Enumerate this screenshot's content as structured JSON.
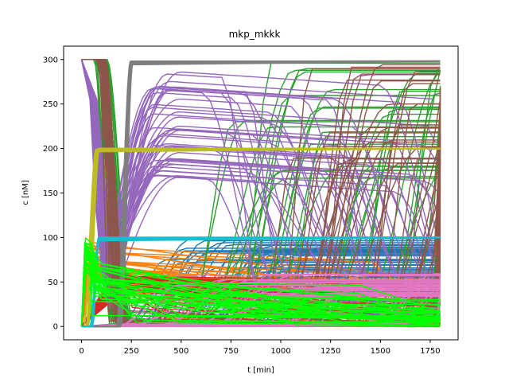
{
  "chart_data": {
    "type": "line",
    "title": "mkp_mkkk",
    "xlabel": "t [min]",
    "ylabel": "c [nM]",
    "xlim": [
      -90,
      1890
    ],
    "ylim": [
      -15,
      315
    ],
    "xticks": [
      0,
      250,
      500,
      750,
      1000,
      1250,
      1500,
      1750
    ],
    "yticks": [
      0,
      50,
      100,
      150,
      200,
      250,
      300
    ],
    "grid": false,
    "legend": "none",
    "x_end": 1800,
    "series": [
      {
        "color": "#1f77b4",
        "role": "rising",
        "start": 0,
        "end": 100,
        "x_rise": [
          120,
          900
        ]
      },
      {
        "color": "#ff7f0e",
        "role": "pulse",
        "start": 0,
        "peak": 95,
        "end": 0,
        "x_peak": 50,
        "x_fall": [
          200,
          1800
        ]
      },
      {
        "color": "#2ca02c",
        "role": "falling",
        "start": 300,
        "end": 0,
        "x_fall": [
          60,
          230
        ]
      },
      {
        "color": "#2ca02c",
        "role": "rising",
        "start": 0,
        "end": 300,
        "x_rise": [
          500,
          1800
        ]
      },
      {
        "color": "#d62728",
        "role": "pulse",
        "start": 0,
        "peak": 65,
        "end": 0,
        "x_peak": 200,
        "x_fall": [
          250,
          1800
        ]
      },
      {
        "color": "#9467bd",
        "role": "hump",
        "start": 300,
        "peak": 290,
        "min": 165,
        "end": 0,
        "x_fall": [
          600,
          1800
        ]
      },
      {
        "color": "#8c564b",
        "role": "falling",
        "start": 300,
        "end": 0,
        "x_fall": [
          70,
          200
        ]
      },
      {
        "color": "#8c564b",
        "role": "rising",
        "start": 0,
        "end": 300,
        "x_rise": [
          900,
          1800
        ]
      },
      {
        "color": "#e377c2",
        "role": "rising",
        "start": 0,
        "end": 60,
        "x_rise": [
          150,
          1800
        ]
      },
      {
        "color": "#7f7f7f",
        "role": "step",
        "start": 0,
        "end": 298,
        "x_rise": [
          170,
          260
        ]
      },
      {
        "color": "#bcbd22",
        "role": "step",
        "start": 0,
        "end": 200,
        "x_rise": [
          10,
          90
        ]
      },
      {
        "color": "#17becf",
        "role": "step",
        "start": 0,
        "end": 100,
        "x_rise": [
          40,
          90
        ]
      },
      {
        "color": "#00ff00",
        "role": "pulse",
        "start": 0,
        "peak": 100,
        "end": 0,
        "x_peak": 20,
        "x_fall": [
          40,
          120
        ]
      }
    ]
  }
}
